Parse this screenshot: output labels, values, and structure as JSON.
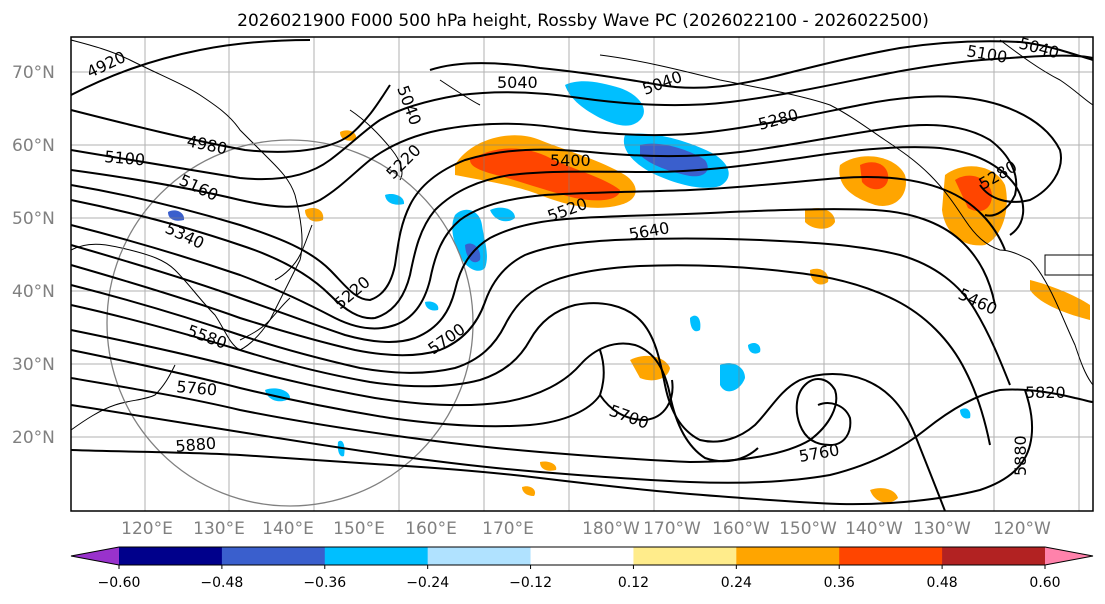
{
  "title": "2026021900 F000 500 hPa height, Rossby Wave PC (2026022100 - 2026022500)",
  "latitudes": [
    "70°N",
    "60°N",
    "50°N",
    "40°N",
    "30°N",
    "20°N"
  ],
  "longitudes": [
    "120°E",
    "130°E",
    "140°E",
    "150°E",
    "160°E",
    "170°E",
    "180°W",
    "170°W",
    "160°W",
    "150°W",
    "140°W",
    "130°W",
    "120°W"
  ],
  "contour_labels": [
    "4920",
    "5040",
    "5040",
    "5040",
    "5100",
    "5040",
    "4980",
    "5100",
    "5280",
    "5160",
    "5220",
    "5400",
    "5340",
    "5520",
    "5640",
    "5280",
    "5220",
    "5460",
    "5580",
    "5700",
    "5760",
    "5820",
    "5700",
    "5880",
    "5760",
    "5880"
  ],
  "colorbar": {
    "ticks": [
      "−0.60",
      "−0.48",
      "−0.36",
      "−0.24",
      "−0.12",
      "0.12",
      "0.24",
      "0.36",
      "0.48",
      "0.60"
    ],
    "colors": [
      "#9932cc",
      "#00008b",
      "#3a5fcd",
      "#00bfff",
      "#b0e2ff",
      "#ffffff",
      "#ffec8b",
      "#ffa500",
      "#ff4500",
      "#b22222",
      "#ff82ab"
    ]
  },
  "colors": {
    "land": "#000000",
    "grid": "#808080",
    "contour": "#000000"
  }
}
